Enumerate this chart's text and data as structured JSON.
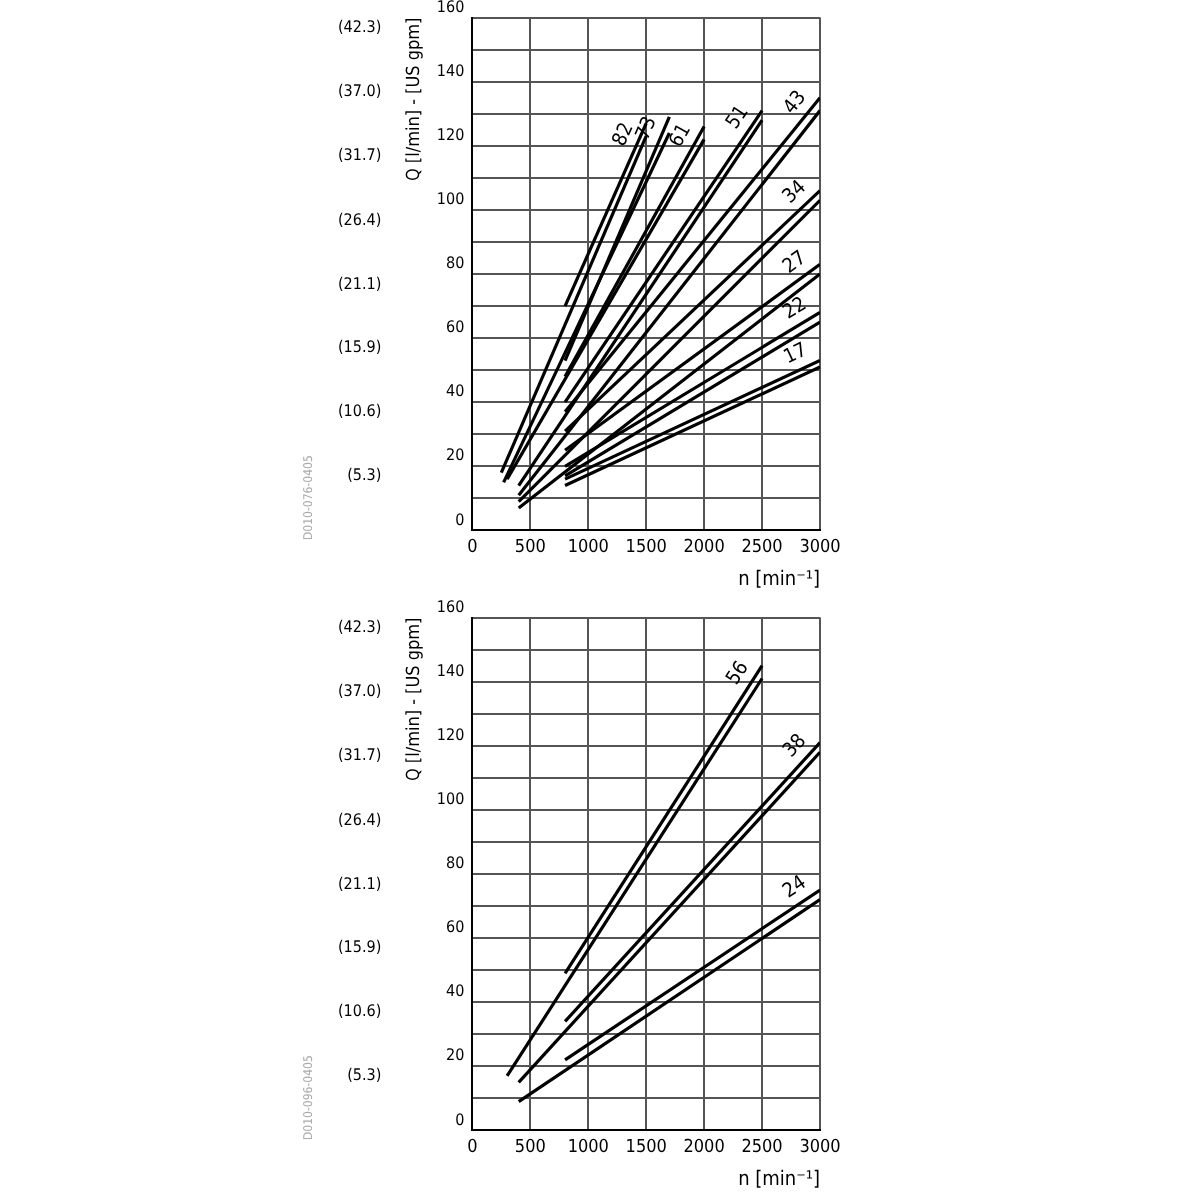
{
  "chart_data": [
    {
      "type": "line",
      "xlabel": "n [min⁻¹]",
      "ylabel": "Q [l/min] - [US gpm]",
      "annotations": [
        "D010-076-0405"
      ],
      "xlim": [
        0,
        3000
      ],
      "ylim": [
        0,
        160
      ],
      "xticks": [
        0,
        500,
        1000,
        1500,
        2000,
        2500,
        3000
      ],
      "yticks": [
        0,
        {
          "value": 10,
          "label": null
        },
        20,
        {
          "value": 30,
          "label": null
        },
        40,
        {
          "value": 50,
          "label": null
        },
        60,
        {
          "value": 70,
          "label": null
        },
        80,
        {
          "value": 90,
          "label": null
        },
        100,
        {
          "value": 110,
          "label": null
        },
        120,
        {
          "value": 130,
          "label": null
        },
        140,
        {
          "value": 150,
          "label": null
        },
        160
      ],
      "y2lim": [
        0,
        42.3
      ],
      "y2ticks": [
        {
          "value": 5.3,
          "label": "(5.3)"
        },
        {
          "value": 10.6,
          "label": "(10.6)"
        },
        {
          "value": 15.9,
          "label": "(15.9)"
        },
        {
          "value": 21.1,
          "label": "(21.1)"
        },
        {
          "value": 26.4,
          "label": "(26.4)"
        },
        {
          "value": 31.7,
          "label": "(31.7)"
        },
        {
          "value": 37,
          "label": "(37.0)"
        },
        {
          "value": 42.3,
          "label": "(42.3)"
        }
      ],
      "grid": true,
      "legend": false,
      "marker": "none",
      "line_style": "solid",
      "series": [
        {
          "name": "82",
          "color": "#000000",
          "x": [
            800,
            1500
          ],
          "values": [
            70,
            127
          ]
        },
        {
          "color": "#000000",
          "x": [
            250,
            1500
          ],
          "values": [
            18,
            123
          ]
        },
        {
          "name": "73",
          "color": "#000000",
          "x": [
            800,
            1700
          ],
          "values": [
            53,
            129
          ]
        },
        {
          "color": "#000000",
          "x": [
            270,
            1700
          ],
          "values": [
            15,
            124
          ]
        },
        {
          "name": "61",
          "color": "#000000",
          "x": [
            800,
            2000
          ],
          "values": [
            48,
            126
          ]
        },
        {
          "color": "#000000",
          "x": [
            300,
            2000
          ],
          "values": [
            16,
            122
          ]
        },
        {
          "name": "51",
          "color": "#000000",
          "x": [
            800,
            2500
          ],
          "values": [
            40,
            131
          ]
        },
        {
          "color": "#000000",
          "x": [
            400,
            2500
          ],
          "values": [
            14,
            128
          ]
        },
        {
          "name": "43",
          "color": "#000000",
          "x": [
            800,
            3000
          ],
          "values": [
            37,
            135
          ]
        },
        {
          "color": "#000000",
          "x": [
            400,
            3000
          ],
          "values": [
            11,
            131
          ]
        },
        {
          "name": "34",
          "color": "#000000",
          "x": [
            800,
            3000
          ],
          "values": [
            31,
            106
          ]
        },
        {
          "color": "#000000",
          "x": [
            400,
            3000
          ],
          "values": [
            9,
            103
          ]
        },
        {
          "name": "27",
          "color": "#000000",
          "x": [
            800,
            3000
          ],
          "values": [
            25,
            83
          ]
        },
        {
          "color": "#000000",
          "x": [
            400,
            3000
          ],
          "values": [
            7,
            80
          ]
        },
        {
          "name": "22",
          "color": "#000000",
          "x": [
            800,
            3000
          ],
          "values": [
            20,
            68
          ]
        },
        {
          "color": "#000000",
          "x": [
            800,
            3000
          ],
          "values": [
            17,
            65
          ]
        },
        {
          "name": "17",
          "color": "#000000",
          "x": [
            800,
            3000
          ],
          "values": [
            16,
            53
          ]
        },
        {
          "color": "#000000",
          "x": [
            800,
            3000
          ],
          "values": [
            14,
            51
          ]
        }
      ]
    },
    {
      "type": "line",
      "xlabel": "n [min⁻¹]",
      "ylabel": "Q [l/min] - [US gpm]",
      "annotations": [
        "D010-096-0405"
      ],
      "xlim": [
        0,
        3000
      ],
      "ylim": [
        0,
        160
      ],
      "xticks": [
        0,
        500,
        1000,
        1500,
        2000,
        2500,
        3000
      ],
      "yticks": [
        0,
        {
          "value": 10,
          "label": null
        },
        20,
        {
          "value": 30,
          "label": null
        },
        40,
        {
          "value": 50,
          "label": null
        },
        60,
        {
          "value": 70,
          "label": null
        },
        80,
        {
          "value": 90,
          "label": null
        },
        100,
        {
          "value": 110,
          "label": null
        },
        120,
        {
          "value": 130,
          "label": null
        },
        140,
        {
          "value": 150,
          "label": null
        },
        160
      ],
      "y2lim": [
        0,
        42.3
      ],
      "y2ticks": [
        {
          "value": 5.3,
          "label": "(5.3)"
        },
        {
          "value": 10.6,
          "label": "(10.6)"
        },
        {
          "value": 15.9,
          "label": "(15.9)"
        },
        {
          "value": 21.1,
          "label": "(21.1)"
        },
        {
          "value": 26.4,
          "label": "(26.4)"
        },
        {
          "value": 31.7,
          "label": "(31.7)"
        },
        {
          "value": 37,
          "label": "(37.0)"
        },
        {
          "value": 42.3,
          "label": "(42.3)"
        }
      ],
      "grid": true,
      "legend": false,
      "marker": "none",
      "line_style": "solid",
      "series": [
        {
          "name": "56",
          "color": "#000000",
          "x": [
            800,
            2500
          ],
          "values": [
            49,
            145
          ]
        },
        {
          "color": "#000000",
          "x": [
            300,
            2500
          ],
          "values": [
            17,
            141
          ]
        },
        {
          "name": "38",
          "color": "#000000",
          "x": [
            800,
            3000
          ],
          "values": [
            34,
            121
          ]
        },
        {
          "color": "#000000",
          "x": [
            400,
            3000
          ],
          "values": [
            15,
            118
          ]
        },
        {
          "name": "24",
          "color": "#000000",
          "x": [
            800,
            3000
          ],
          "values": [
            22,
            75
          ]
        },
        {
          "color": "#000000",
          "x": [
            400,
            3000
          ],
          "values": [
            9,
            72
          ]
        }
      ]
    }
  ]
}
